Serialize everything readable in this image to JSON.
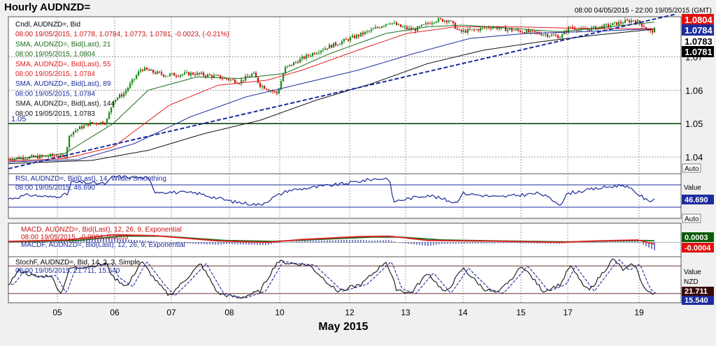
{
  "header": {
    "title": "Hourly AUDNZD=",
    "range": "08:00 04/05/2015 - 22:00 19/05/2015 (GMT)"
  },
  "colors": {
    "candle_up": "#1a8a1a",
    "candle_down": "#cc1111",
    "sma21": "#1a6b1a",
    "sma55": "#e02020",
    "sma89": "#1c2c9c",
    "sma144": "#111111",
    "trend": "#1c2c9c",
    "support": "#0a4a0a",
    "price_bg": "#000000",
    "red_tag": "#e01010",
    "navy_tag": "#1c2c9c"
  },
  "legend": {
    "main": [
      {
        "text": "Cndl, AUDNZD=, Bid",
        "color": "#000000"
      },
      {
        "text": "08:00 19/05/2015, 1.0778, 1.0784, 1.0773, 1.0781, -0.0023, (-0.21%)",
        "color": "#cc1111"
      },
      {
        "text": "SMA, AUDNZD=, Bid(Last), 21",
        "color": "#1a6b1a"
      },
      {
        "text": "08:00 19/05/2015, 1.0804",
        "color": "#1a6b1a"
      },
      {
        "text": "SMA, AUDNZD=, Bid(Last), 55",
        "color": "#e02020"
      },
      {
        "text": "08:00 19/05/2015, 1.0784",
        "color": "#e02020"
      },
      {
        "text": "SMA, AUDNZD=, Bid(Last), 89",
        "color": "#1c2c9c"
      },
      {
        "text": "08:00 19/05/2015, 1.0784",
        "color": "#1c2c9c"
      },
      {
        "text": "SMA, AUDNZD=, Bid(Last), 144",
        "color": "#111111"
      },
      {
        "text": "08:00 19/05/2015, 1.0783",
        "color": "#111111"
      }
    ],
    "rsi": [
      {
        "text": "RSI, AUDNZD=, Bid(Last), 14, Wilder Smoothing",
        "color": "#1c2c9c"
      },
      {
        "text": "08:00 19/05/2015, 46.690",
        "color": "#1c2c9c"
      }
    ],
    "macd": [
      {
        "text": "MACD, AUDNZD=, Bid(Last), 12, 26, 9, Exponential",
        "color": "#cc1111"
      },
      {
        "text": "08:00 19/05/2015, -0.0004, 0.0003",
        "color": "#cc1111"
      },
      {
        "text": "MACDF, AUDNZD=, Bid(Last), 12, 26, 9, Exponential",
        "color": "#1c2c9c"
      }
    ],
    "stoch": [
      {
        "text": "StochF, AUDNZD=, Bid, 14, 3, 3, Simple",
        "color": "#000000"
      },
      {
        "text": "08:00 19/05/2015, 21.711, 15.540",
        "color": "#1c2c9c"
      }
    ]
  },
  "chart_data": {
    "type": "candlestick",
    "title": "Hourly AUDNZD=",
    "xlabel": "May 2015",
    "x_ticks": [
      "05",
      "06",
      "07",
      "08",
      "10",
      "12",
      "13",
      "14",
      "15",
      "17",
      "19"
    ],
    "price": {
      "ylim": [
        1.035,
        1.082
      ],
      "y_ticks": [
        "1.04",
        "1.05",
        "1.06",
        "1.07"
      ],
      "y_tick_values": [
        1.04,
        1.05,
        1.06,
        1.07
      ],
      "support_label": "1.05",
      "support_level": 1.05,
      "trend": [
        {
          "t": 0,
          "v": 1.0365
        },
        {
          "t": 955,
          "v": 1.0828
        }
      ],
      "price_tags": [
        {
          "text": "1.0804",
          "value": 1.0804,
          "style": "red"
        },
        {
          "text": "1.0784",
          "value": 1.0784,
          "style": "navy"
        },
        {
          "text": "1.0783",
          "value": 1.0783,
          "style": "black-light"
        },
        {
          "text": "1.0781",
          "value": 1.0781,
          "style": "black"
        }
      ],
      "axis_button": "Auto",
      "path_anchors": [
        [
          0,
          1.0395
        ],
        [
          40,
          1.04
        ],
        [
          70,
          1.0405
        ],
        [
          80,
          1.0395
        ],
        [
          88,
          1.047
        ],
        [
          100,
          1.0485
        ],
        [
          115,
          1.05
        ],
        [
          140,
          1.0505
        ],
        [
          150,
          1.057
        ],
        [
          165,
          1.059
        ],
        [
          190,
          1.0665
        ],
        [
          205,
          1.0655
        ],
        [
          225,
          1.0645
        ],
        [
          265,
          1.065
        ],
        [
          300,
          1.064
        ],
        [
          330,
          1.0625
        ],
        [
          350,
          1.065
        ],
        [
          360,
          1.0615
        ],
        [
          375,
          1.06
        ],
        [
          385,
          1.059
        ],
        [
          395,
          1.0665
        ],
        [
          420,
          1.0695
        ],
        [
          445,
          1.072
        ],
        [
          470,
          1.074
        ],
        [
          495,
          1.076
        ],
        [
          520,
          1.078
        ],
        [
          545,
          1.0805
        ],
        [
          560,
          1.079
        ],
        [
          580,
          1.078
        ],
        [
          610,
          1.081
        ],
        [
          630,
          1.081
        ],
        [
          645,
          1.0775
        ],
        [
          665,
          1.078
        ],
        [
          690,
          1.079
        ],
        [
          720,
          1.078
        ],
        [
          760,
          1.077
        ],
        [
          790,
          1.076
        ],
        [
          803,
          1.079
        ],
        [
          820,
          1.078
        ],
        [
          850,
          1.079
        ],
        [
          870,
          1.08
        ],
        [
          895,
          1.081
        ],
        [
          910,
          1.079
        ],
        [
          918,
          1.0775
        ],
        [
          925,
          1.0781
        ]
      ],
      "sma21_anchors": [
        [
          0,
          1.0392
        ],
        [
          80,
          1.041
        ],
        [
          150,
          1.05
        ],
        [
          200,
          1.06
        ],
        [
          270,
          1.064
        ],
        [
          330,
          1.0635
        ],
        [
          395,
          1.065
        ],
        [
          460,
          1.071
        ],
        [
          540,
          1.077
        ],
        [
          600,
          1.079
        ],
        [
          650,
          1.0795
        ],
        [
          720,
          1.0785
        ],
        [
          790,
          1.0775
        ],
        [
          860,
          1.079
        ],
        [
          925,
          1.0804
        ]
      ],
      "sma55_anchors": [
        [
          0,
          1.0388
        ],
        [
          80,
          1.0395
        ],
        [
          150,
          1.043
        ],
        [
          230,
          1.0555
        ],
        [
          300,
          1.0615
        ],
        [
          370,
          1.063
        ],
        [
          420,
          1.066
        ],
        [
          500,
          1.072
        ],
        [
          570,
          1.077
        ],
        [
          640,
          1.079
        ],
        [
          720,
          1.079
        ],
        [
          820,
          1.0785
        ],
        [
          925,
          1.0784
        ]
      ],
      "sma89_anchors": [
        [
          0,
          1.0385
        ],
        [
          100,
          1.0392
        ],
        [
          180,
          1.044
        ],
        [
          260,
          1.052
        ],
        [
          340,
          1.058
        ],
        [
          420,
          1.062
        ],
        [
          500,
          1.066
        ],
        [
          580,
          1.071
        ],
        [
          660,
          1.0755
        ],
        [
          740,
          1.077
        ],
        [
          820,
          1.0775
        ],
        [
          925,
          1.0784
        ]
      ],
      "sma144_anchors": [
        [
          0,
          1.038
        ],
        [
          120,
          1.039
        ],
        [
          200,
          1.042
        ],
        [
          280,
          1.047
        ],
        [
          360,
          1.051
        ],
        [
          440,
          1.057
        ],
        [
          520,
          1.062
        ],
        [
          600,
          1.068
        ],
        [
          680,
          1.072
        ],
        [
          760,
          1.0745
        ],
        [
          840,
          1.0765
        ],
        [
          925,
          1.0783
        ]
      ]
    },
    "rsi": {
      "ylim": [
        10,
        90
      ],
      "levels": [
        70,
        30
      ],
      "last": 46.69,
      "value_header": "Value",
      "tag": "46.690",
      "axis_button": "Auto",
      "anchors": [
        [
          0,
          45
        ],
        [
          30,
          52
        ],
        [
          60,
          48
        ],
        [
          85,
          53
        ],
        [
          90,
          75
        ],
        [
          140,
          72
        ],
        [
          150,
          85
        ],
        [
          200,
          82
        ],
        [
          210,
          58
        ],
        [
          270,
          55
        ],
        [
          320,
          40
        ],
        [
          360,
          34
        ],
        [
          380,
          48
        ],
        [
          400,
          60
        ],
        [
          480,
          72
        ],
        [
          520,
          80
        ],
        [
          545,
          82
        ],
        [
          550,
          40
        ],
        [
          600,
          52
        ],
        [
          640,
          38
        ],
        [
          650,
          55
        ],
        [
          700,
          48
        ],
        [
          760,
          55
        ],
        [
          790,
          35
        ],
        [
          800,
          55
        ],
        [
          850,
          65
        ],
        [
          880,
          70
        ],
        [
          905,
          50
        ],
        [
          915,
          40
        ],
        [
          925,
          46.69
        ]
      ]
    },
    "macd": {
      "ylim": [
        -0.003,
        0.004
      ],
      "tags": [
        {
          "text": "0.0003",
          "value": 0.0003,
          "style": "green"
        },
        {
          "text": "-0.0004",
          "value": -0.0004,
          "style": "red"
        }
      ],
      "macd_anchors": [
        [
          0,
          0.0002
        ],
        [
          85,
          0.0005
        ],
        [
          150,
          0.0016
        ],
        [
          210,
          0.0014
        ],
        [
          300,
          0.0003
        ],
        [
          370,
          0.0
        ],
        [
          420,
          0.0006
        ],
        [
          500,
          0.0012
        ],
        [
          545,
          0.0013
        ],
        [
          600,
          0.0004
        ],
        [
          660,
          0.0003
        ],
        [
          720,
          0.0002
        ],
        [
          790,
          0.0
        ],
        [
          840,
          0.0003
        ],
        [
          900,
          0.0005
        ],
        [
          925,
          -0.0004
        ]
      ],
      "signal_anchors": [
        [
          0,
          0.0001
        ],
        [
          100,
          0.0004
        ],
        [
          160,
          0.0013
        ],
        [
          220,
          0.0013
        ],
        [
          310,
          0.0004
        ],
        [
          380,
          0.0002
        ],
        [
          440,
          0.0006
        ],
        [
          520,
          0.0011
        ],
        [
          560,
          0.0011
        ],
        [
          620,
          0.0005
        ],
        [
          700,
          0.0003
        ],
        [
          800,
          0.0001
        ],
        [
          860,
          0.0003
        ],
        [
          910,
          0.0004
        ],
        [
          925,
          0.0003
        ]
      ]
    },
    "stoch": {
      "ylim": [
        0,
        100
      ],
      "levels": [
        80,
        20
      ],
      "value_header": "Value",
      "currency": "NZD",
      "tags": [
        {
          "text": "21.711",
          "value": 21.711,
          "style": "dark"
        },
        {
          "text": "15.540",
          "value": 15.54,
          "style": "navy"
        }
      ],
      "anchors": [
        [
          0,
          40
        ],
        [
          15,
          70
        ],
        [
          40,
          55
        ],
        [
          60,
          60
        ],
        [
          75,
          20
        ],
        [
          88,
          75
        ],
        [
          110,
          78
        ],
        [
          140,
          85
        ],
        [
          150,
          55
        ],
        [
          170,
          35
        ],
        [
          190,
          90
        ],
        [
          215,
          40
        ],
        [
          230,
          15
        ],
        [
          250,
          45
        ],
        [
          275,
          85
        ],
        [
          300,
          20
        ],
        [
          330,
          10
        ],
        [
          360,
          25
        ],
        [
          385,
          90
        ],
        [
          405,
          85
        ],
        [
          430,
          82
        ],
        [
          470,
          25
        ],
        [
          505,
          40
        ],
        [
          540,
          90
        ],
        [
          555,
          30
        ],
        [
          575,
          20
        ],
        [
          600,
          65
        ],
        [
          625,
          20
        ],
        [
          650,
          75
        ],
        [
          680,
          30
        ],
        [
          700,
          20
        ],
        [
          735,
          80
        ],
        [
          765,
          25
        ],
        [
          790,
          40
        ],
        [
          803,
          80
        ],
        [
          830,
          25
        ],
        [
          865,
          95
        ],
        [
          880,
          70
        ],
        [
          895,
          85
        ],
        [
          910,
          30
        ],
        [
          920,
          18
        ],
        [
          925,
          21.711
        ]
      ]
    }
  }
}
